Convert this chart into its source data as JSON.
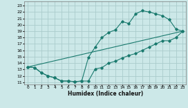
{
  "xlabel": "Humidex (Indice chaleur)",
  "bg_color": "#cce8e8",
  "grid_color": "#aacccc",
  "line_color": "#1a7a6e",
  "xlim": [
    -0.5,
    23.5
  ],
  "ylim": [
    10.7,
    23.7
  ],
  "xticks": [
    0,
    1,
    2,
    3,
    4,
    5,
    6,
    7,
    8,
    9,
    10,
    11,
    12,
    13,
    14,
    15,
    16,
    17,
    18,
    19,
    20,
    21,
    22,
    23
  ],
  "yticks": [
    11,
    12,
    13,
    14,
    15,
    16,
    17,
    18,
    19,
    20,
    21,
    22,
    23
  ],
  "line1_x": [
    0,
    1,
    2,
    3,
    4,
    5,
    6,
    7,
    8,
    9,
    10,
    11,
    12,
    13,
    14,
    15,
    16,
    17,
    18,
    19,
    20,
    21,
    22,
    23
  ],
  "line1_y": [
    13.4,
    13.3,
    12.5,
    12.0,
    11.7,
    11.2,
    11.2,
    11.1,
    11.2,
    11.2,
    13.1,
    13.3,
    14.0,
    14.3,
    14.8,
    15.2,
    15.5,
    16.0,
    16.5,
    17.0,
    17.5,
    17.5,
    18.0,
    19.0
  ],
  "line2_x": [
    0,
    1,
    2,
    3,
    4,
    5,
    6,
    7,
    8,
    9,
    10,
    11,
    12,
    13,
    14,
    15,
    16,
    17,
    18,
    19,
    20,
    21,
    22,
    23
  ],
  "line2_y": [
    13.4,
    13.3,
    12.5,
    12.0,
    11.7,
    11.2,
    11.2,
    11.1,
    11.2,
    14.9,
    16.5,
    18.0,
    18.8,
    19.2,
    20.5,
    20.2,
    21.7,
    22.2,
    22.0,
    21.7,
    21.4,
    20.8,
    19.3,
    19.0
  ],
  "line3_x": [
    0,
    23
  ],
  "line3_y": [
    13.4,
    19.0
  ]
}
